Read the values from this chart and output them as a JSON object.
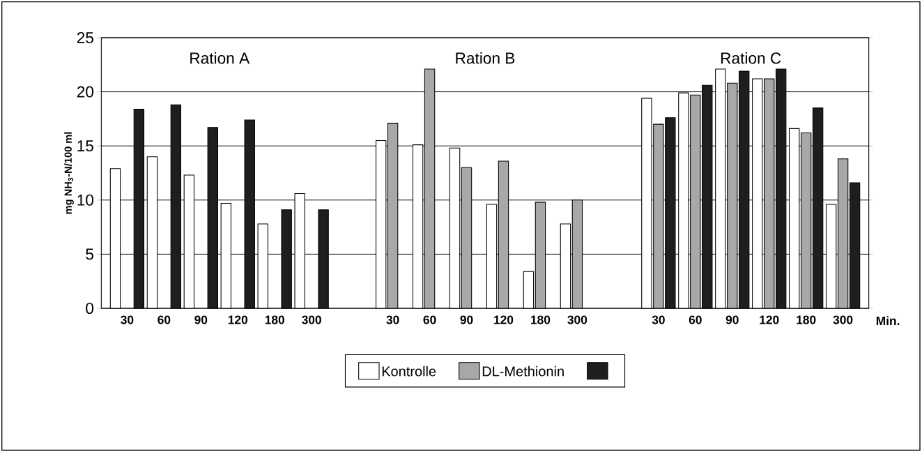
{
  "chart_data": {
    "type": "bar",
    "ylabel": "mg NH$_{3}$-N/100 ml",
    "xlabel": "Min.",
    "categories": [
      "30",
      "60",
      "90",
      "120",
      "180",
      "300",
      "30",
      "60",
      "90",
      "120",
      "180",
      "300",
      "30",
      "60",
      "90",
      "120",
      "180",
      "300"
    ],
    "annotations": [
      "Ration A",
      "Ration B",
      "Ration C"
    ],
    "series": [
      {
        "name": "Kontrolle",
        "color": "#ffffff",
        "values": [
          12.9,
          14.0,
          12.3,
          9.7,
          7.8,
          10.6,
          15.5,
          15.1,
          14.8,
          9.6,
          3.4,
          7.8,
          19.4,
          19.9,
          22.1,
          21.2,
          16.6,
          9.6
        ]
      },
      {
        "name": "DL-Methionin",
        "color": "#a8a8a8",
        "values": [
          null,
          null,
          null,
          null,
          null,
          null,
          17.1,
          22.1,
          13.0,
          13.6,
          9.8,
          10.0,
          17.0,
          19.7,
          20.8,
          21.2,
          16.2,
          13.8
        ]
      },
      {
        "color": "#1e1e1e",
        "values": [
          18.4,
          18.8,
          16.7,
          17.4,
          9.1,
          9.1,
          null,
          null,
          null,
          null,
          null,
          null,
          17.6,
          20.6,
          21.9,
          22.1,
          18.5,
          11.6
        ]
      }
    ],
    "ylim": [
      0,
      25
    ],
    "yticks": [
      0,
      5,
      10,
      15,
      20,
      25
    ],
    "grid": "y",
    "legend": "bottom"
  }
}
